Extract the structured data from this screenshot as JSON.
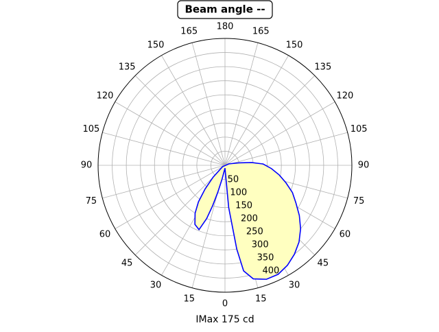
{
  "chart_data": {
    "type": "polar",
    "title": "Beam angle --",
    "xlabel": "IMax 175 cd",
    "series": [
      {
        "color": "#0000ff",
        "fill": "#ffffc0",
        "x": [
          -60,
          -45,
          -40,
          -36,
          -32,
          -27,
          -22,
          -19,
          -17,
          -15,
          -12,
          -5,
          0,
          5,
          8,
          10,
          14,
          20,
          26,
          32,
          38,
          44,
          50,
          56,
          62,
          68,
          74,
          80,
          86,
          92,
          96,
          100,
          110
        ],
        "values": [
          10,
          60,
          110,
          160,
          200,
          235,
          246,
          200,
          150,
          100,
          50,
          15,
          10,
          150,
          300,
          380,
          415,
          430,
          430,
          418,
          400,
          378,
          350,
          318,
          285,
          258,
          225,
          195,
          165,
          135,
          95,
          50,
          15
        ]
      }
    ],
    "rlim": [
      0,
      450
    ],
    "rticks": [
      50,
      100,
      150,
      200,
      250,
      300,
      350,
      400
    ],
    "xticks": [
      0,
      15,
      30,
      45,
      60,
      75,
      90,
      105,
      120,
      135,
      150,
      165,
      180,
      {
        "value": -15,
        "label": "15"
      },
      {
        "value": -30,
        "label": "30"
      },
      {
        "value": -45,
        "label": "45"
      },
      {
        "value": -60,
        "label": "60"
      },
      {
        "value": -75,
        "label": "75"
      },
      {
        "value": -90,
        "label": "90"
      },
      {
        "value": -105,
        "label": "105"
      },
      {
        "value": -120,
        "label": "120"
      },
      {
        "value": -135,
        "label": "135"
      },
      {
        "value": -150,
        "label": "150"
      },
      {
        "value": -165,
        "label": "165"
      }
    ],
    "grid": true
  }
}
